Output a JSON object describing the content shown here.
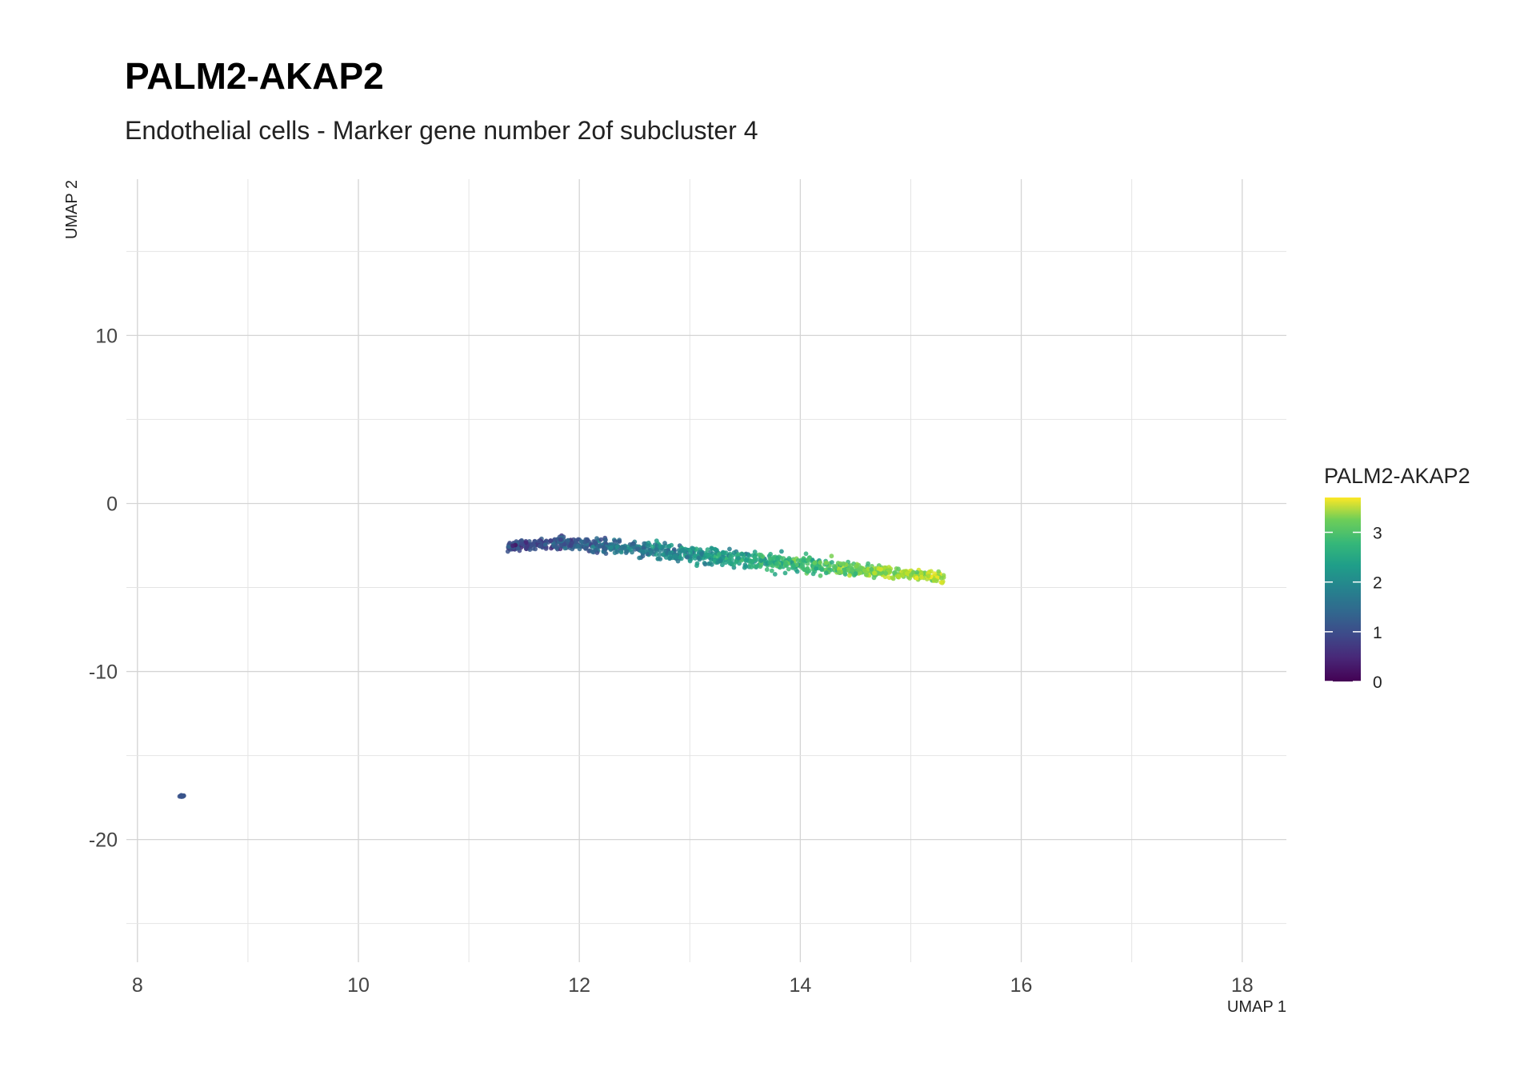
{
  "chart_data": {
    "type": "scatter",
    "title": "PALM2-AKAP2",
    "subtitle": "Endothelial cells - Marker gene number 2of subcluster 4",
    "xlabel": "UMAP 1",
    "ylabel": "UMAP 2",
    "xlim": [
      7.9,
      18.4
    ],
    "ylim": [
      -27.3,
      19.3
    ],
    "xticks": [
      8,
      10,
      12,
      14,
      16,
      18
    ],
    "yticks": [
      10,
      0,
      -10,
      -20
    ],
    "grid": true,
    "legend": {
      "title": "PALM2-AKAP2",
      "placement": "right",
      "range": [
        0,
        3.7
      ],
      "ticks": [
        0,
        1,
        2,
        3
      ]
    },
    "color_scale": "viridis",
    "clusters": [
      {
        "x_from": 11.35,
        "x_to": 15.3,
        "y_center_start": -2.0,
        "y_center_end": -4.4,
        "thickness": 1.6,
        "value_start": 0.7,
        "value_end": 3.4,
        "count": 1100
      },
      {
        "x": 8.4,
        "y": -17.4,
        "value": 1.0,
        "count": 12
      }
    ]
  }
}
